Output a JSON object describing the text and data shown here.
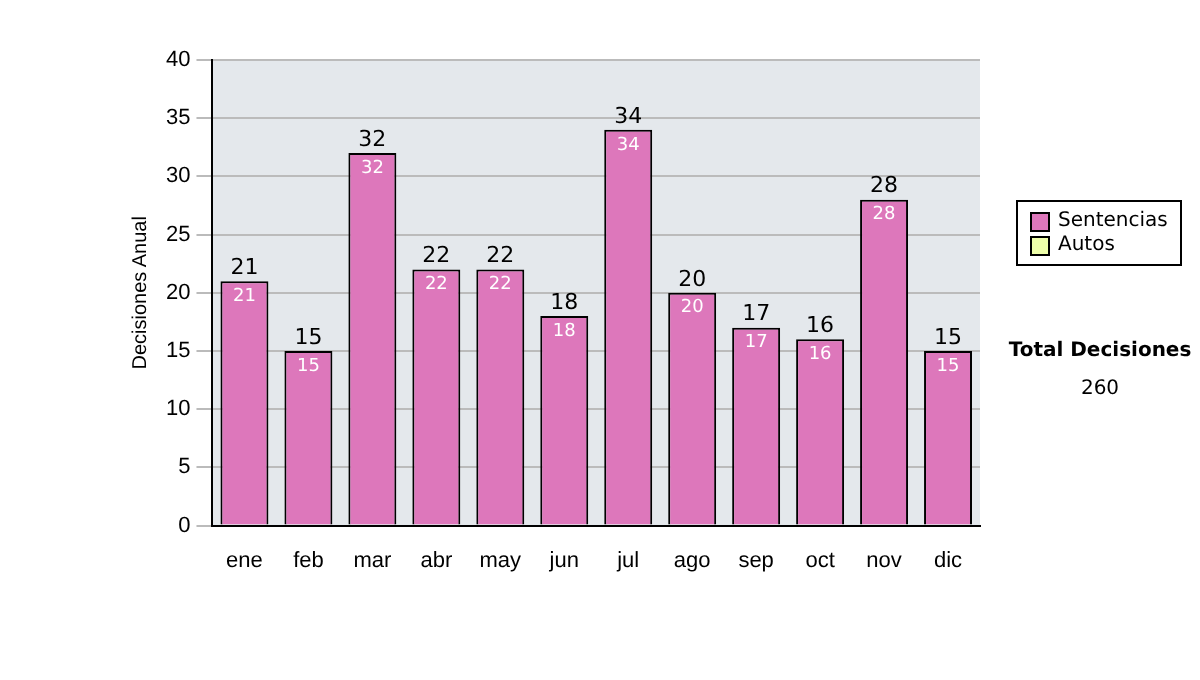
{
  "chart_data": {
    "type": "bar",
    "stacked": true,
    "ylabel": "Decisiones Anual",
    "categories": [
      "ene",
      "feb",
      "mar",
      "abr",
      "may",
      "jun",
      "jul",
      "ago",
      "sep",
      "oct",
      "nov",
      "dic"
    ],
    "series": [
      {
        "name": "Sentencias",
        "color": "#dd77bb",
        "values": [
          21,
          15,
          32,
          22,
          22,
          18,
          34,
          20,
          17,
          16,
          28,
          15
        ],
        "value_labels": [
          "21",
          "15",
          "32",
          "22",
          "22",
          "18",
          "34",
          "20",
          "17",
          "16",
          "28",
          "15"
        ]
      },
      {
        "name": "Autos",
        "color": "#eeffaa",
        "values": [
          0,
          0,
          0,
          0,
          0,
          0,
          0,
          0,
          0,
          0,
          0,
          0
        ]
      }
    ],
    "totals": [
      "21",
      "15",
      "32",
      "22",
      "22",
      "18",
      "34",
      "20",
      "17",
      "16",
      "28",
      "15"
    ],
    "ylim": [
      0,
      40
    ],
    "yticks": [
      0,
      5,
      10,
      15,
      20,
      25,
      30,
      35,
      40
    ],
    "grid": "y",
    "legend": "right",
    "annotations": [
      "Total Decisiones",
      "260"
    ]
  }
}
